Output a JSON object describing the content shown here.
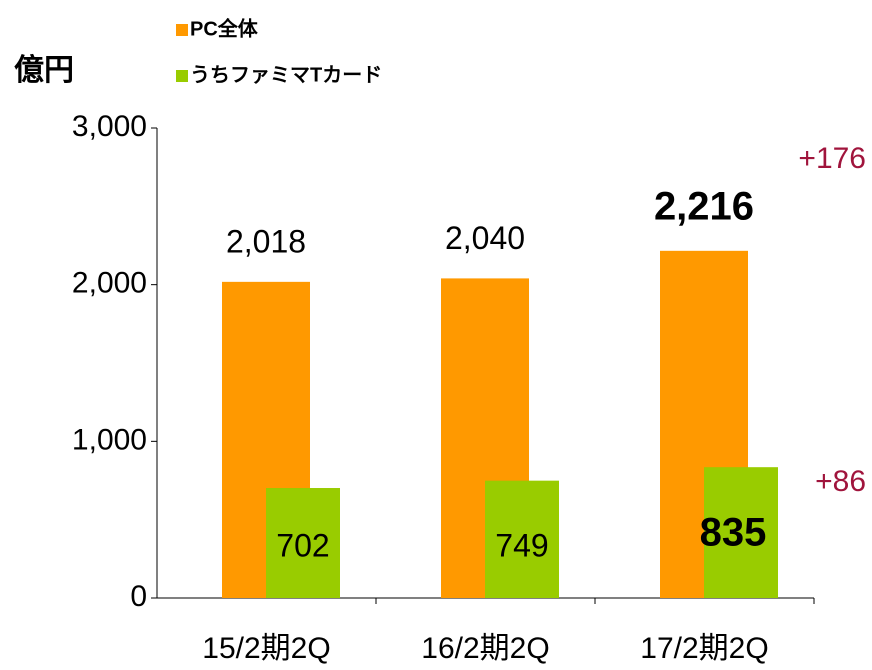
{
  "chart_data": {
    "type": "bar",
    "y_label": "億円",
    "categories": [
      "15/2期2Q",
      "16/2期2Q",
      "17/2期2Q"
    ],
    "series": [
      {
        "name": "PC全体",
        "color": "#ff9900",
        "values": [
          2018,
          2040,
          2216
        ],
        "value_labels": [
          "2,018",
          "2,040",
          "2,216"
        ]
      },
      {
        "name": "うちファミマTカード",
        "color": "#99cc00",
        "values": [
          702,
          749,
          835
        ],
        "value_labels": [
          "702",
          "749",
          "835"
        ]
      }
    ],
    "ylim": [
      0,
      3000
    ],
    "yticks": [
      0,
      {
        "value": 1000,
        "label": "1,000"
      },
      {
        "value": 2000,
        "label": "2,000"
      },
      {
        "value": 3000,
        "label": "3,000"
      }
    ],
    "annotations": [
      "+176",
      "+86"
    ],
    "annotation_color": "#a0143c"
  }
}
